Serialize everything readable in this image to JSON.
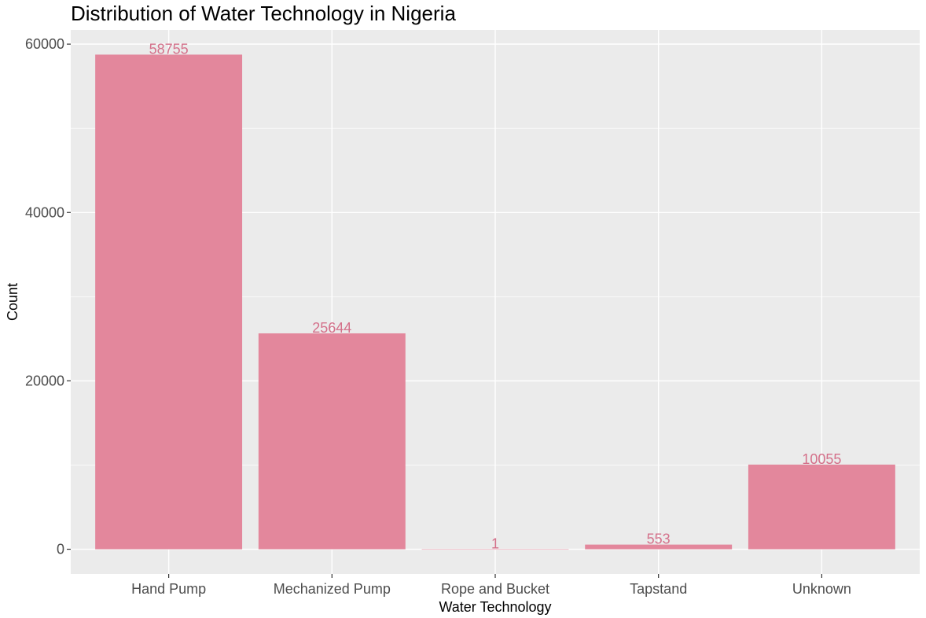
{
  "chart_data": {
    "type": "bar",
    "title": "Distribution of Water Technology in Nigeria",
    "xlabel": "Water Technology",
    "ylabel": "Count",
    "categories": [
      "Hand Pump",
      "Mechanized Pump",
      "Rope and Bucket",
      "Tapstand",
      "Unknown"
    ],
    "values": [
      58755,
      25644,
      1,
      553,
      10055
    ],
    "data_labels": [
      "58755",
      "25644",
      "1",
      "553",
      "10055"
    ],
    "yticks": [
      0,
      20000,
      40000,
      60000
    ],
    "ytick_labels": [
      "0",
      "20000",
      "40000",
      "60000"
    ],
    "ylim": [
      -2937.75,
      61692.75
    ],
    "grid": true,
    "legend": "none",
    "colors": {
      "bar": "#E3879C",
      "label": "#D4708A",
      "panel": "#EBEBEB",
      "grid": "#FFFFFF"
    }
  }
}
